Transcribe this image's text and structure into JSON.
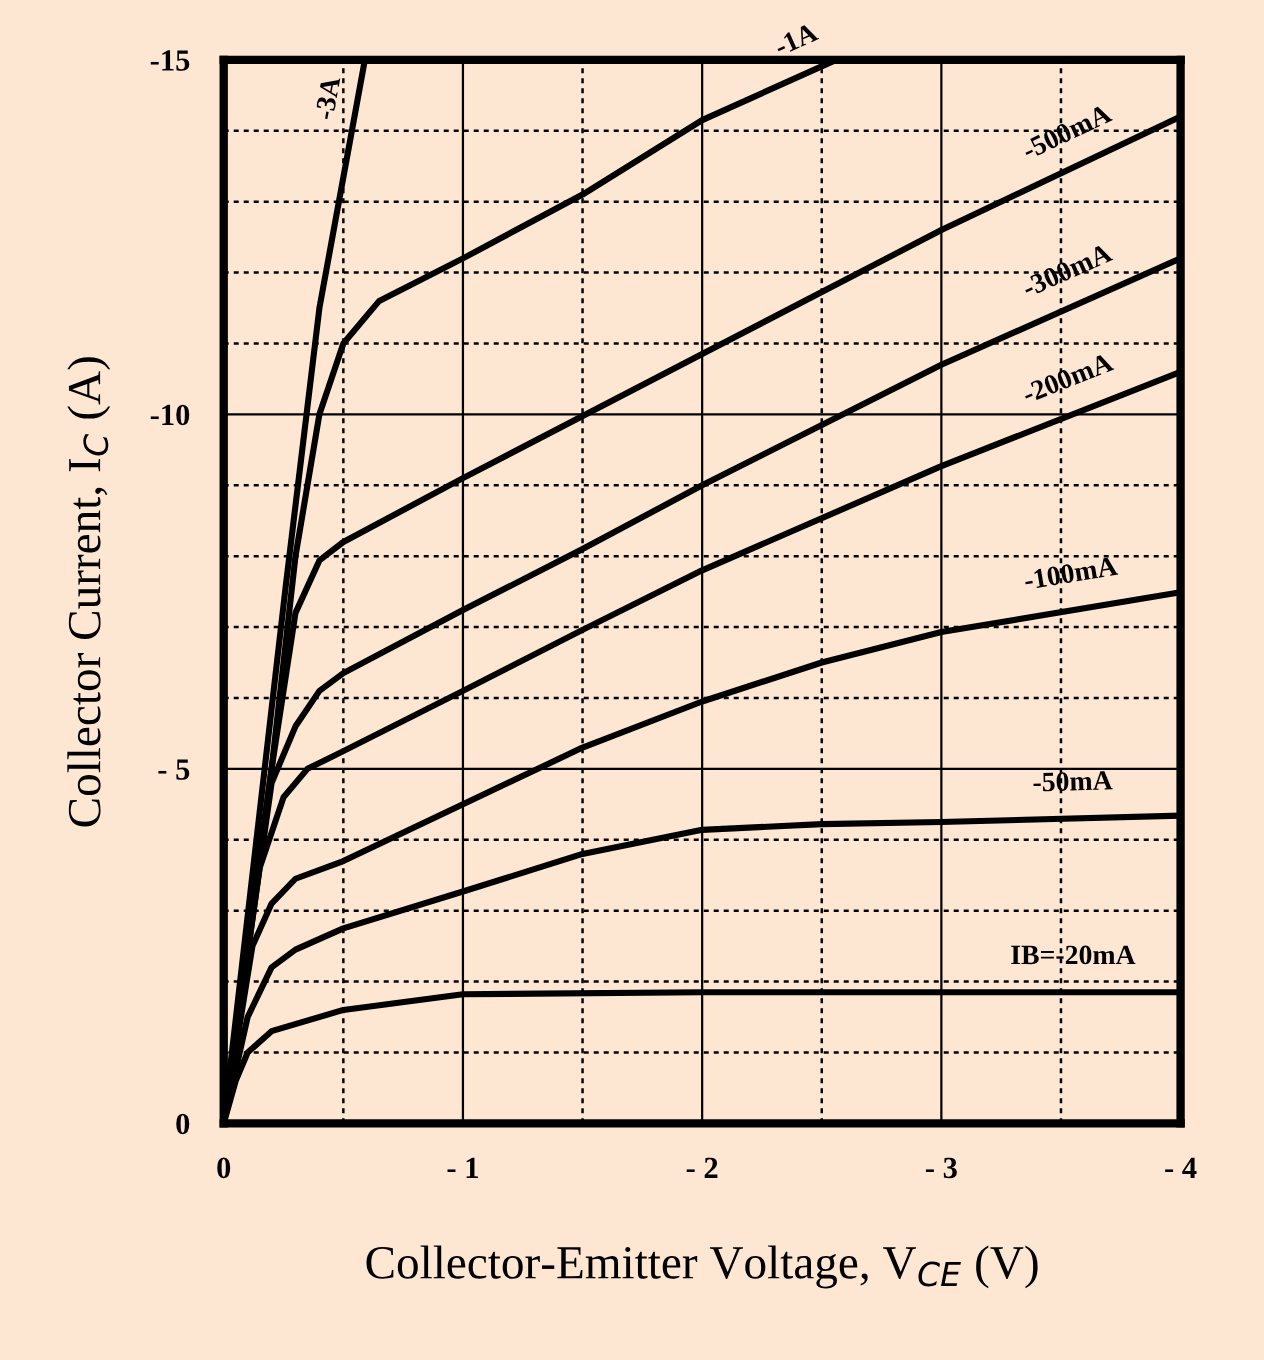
{
  "chart_data": {
    "type": "line",
    "xlabel": "Collector-Emitter Voltage, V$_{CE}$ (V)",
    "ylabel": "Collector Current, I$_{C}$ (A)",
    "xlim": [
      0,
      -4
    ],
    "ylim": [
      0,
      -15
    ],
    "xticks": [
      0,
      {
        "value": -0.5,
        "label": null
      },
      {
        "value": -1,
        "label": "- 1"
      },
      {
        "value": -1.5,
        "label": null
      },
      {
        "value": -2,
        "label": "- 2"
      },
      {
        "value": -2.5,
        "label": null
      },
      {
        "value": -3,
        "label": "- 3"
      },
      {
        "value": -3.5,
        "label": null
      },
      {
        "value": -4,
        "label": "- 4"
      }
    ],
    "yticks": [
      0,
      {
        "value": -1,
        "label": null
      },
      {
        "value": -2,
        "label": null
      },
      {
        "value": -3,
        "label": null
      },
      {
        "value": -4,
        "label": null
      },
      {
        "value": -5,
        "label": "- 5"
      },
      {
        "value": -6,
        "label": null
      },
      {
        "value": -7,
        "label": null
      },
      {
        "value": -8,
        "label": null
      },
      {
        "value": -9,
        "label": null
      },
      -10,
      {
        "value": -11,
        "label": null
      },
      {
        "value": -12,
        "label": null
      },
      {
        "value": -13,
        "label": null
      },
      {
        "value": -14,
        "label": null
      },
      -15
    ],
    "grid": true,
    "legend": false,
    "series": [
      {
        "name": "-3A",
        "color": "#000000",
        "x": [
          0,
          -0.26,
          -0.4,
          -0.59
        ],
        "values": [
          0,
          -7.6,
          -11.5,
          -15
        ]
      },
      {
        "name": "-1A",
        "color": "#000000",
        "x": [
          0,
          -0.2,
          -0.3,
          -0.4,
          -0.5,
          -0.65,
          -1,
          -1.5,
          -2,
          -2.56
        ],
        "values": [
          0,
          -5,
          -8,
          -10,
          -11,
          -11.6,
          -12.2,
          -13.1,
          -14.15,
          -15
        ]
      },
      {
        "name": "-500mA",
        "color": "#000000",
        "x": [
          0,
          -0.2,
          -0.3,
          -0.4,
          -0.5,
          -1,
          -2,
          -3,
          -4
        ],
        "values": [
          0,
          -5,
          -7.2,
          -7.94,
          -8.2,
          -9.1,
          -10.85,
          -12.6,
          -14.2
        ]
      },
      {
        "name": "-300mA",
        "color": "#000000",
        "x": [
          0,
          -0.2,
          -0.3,
          -0.4,
          -0.5,
          -1,
          -1.5,
          -2,
          -3,
          -4
        ],
        "values": [
          0,
          -4.8,
          -5.6,
          -6.1,
          -6.35,
          -7.24,
          -8.1,
          -9.0,
          -10.7,
          -12.2
        ]
      },
      {
        "name": "-200mA",
        "color": "#000000",
        "x": [
          0,
          -0.15,
          -0.25,
          -0.35,
          -0.5,
          -1,
          -1.5,
          -2,
          -3,
          -4
        ],
        "values": [
          0,
          -3.6,
          -4.6,
          -5.0,
          -5.25,
          -6.1,
          -6.96,
          -7.8,
          -9.27,
          -10.6
        ]
      },
      {
        "name": "-100mA",
        "color": "#000000",
        "x": [
          0,
          -0.12,
          -0.2,
          -0.3,
          -0.5,
          -1,
          -1.5,
          -2,
          -2.5,
          -3,
          -4
        ],
        "values": [
          0,
          -2.5,
          -3.1,
          -3.45,
          -3.7,
          -4.5,
          -5.3,
          -5.95,
          -6.5,
          -6.93,
          -7.49
        ]
      },
      {
        "name": "-50mA",
        "color": "#000000",
        "x": [
          0,
          -0.1,
          -0.2,
          -0.3,
          -0.5,
          -1,
          -1.5,
          -2,
          -2.5,
          -3,
          -4
        ],
        "values": [
          0,
          -1.5,
          -2.2,
          -2.45,
          -2.75,
          -3.27,
          -3.8,
          -4.14,
          -4.22,
          -4.25,
          -4.34
        ]
      },
      {
        "name": "IB=-20mA",
        "color": "#000000",
        "x": [
          0,
          -0.05,
          -0.1,
          -0.2,
          -0.5,
          -1,
          -2,
          -4
        ],
        "values": [
          0,
          -0.6,
          -1.0,
          -1.3,
          -1.6,
          -1.82,
          -1.85,
          -1.85
        ]
      }
    ]
  }
}
